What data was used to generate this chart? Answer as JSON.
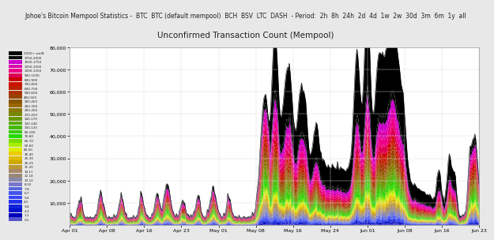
{
  "title": "Unconfirmed Transaction Count (Mempool)",
  "header": "Johoe's Bitcoin Mempool Statistics",
  "background_color": "#e8e8e8",
  "plot_background": "#ffffff",
  "header_background": "#cccccc",
  "ylim": [
    0,
    80000
  ],
  "ylabel_values": [
    10000,
    20000,
    30000,
    40000,
    50000,
    60000,
    70000,
    80000
  ],
  "x_labels": [
    "Apr 01",
    "Apr 08",
    "Apr 16",
    "Apr 23",
    "May 01",
    "May 08",
    "May 16",
    "May 24",
    "Jun 01",
    "Jun 08",
    "Jun 16",
    "Jun 23"
  ],
  "legend_entries": [
    {
      "label": "2000+ sat/B",
      "color": "#000000"
    },
    {
      "label": "1750-2000",
      "color": "#0a0a0a"
    },
    {
      "label": "1500-1750",
      "color": "#cc00cc"
    },
    {
      "label": "1250-1500",
      "color": "#dd00aa"
    },
    {
      "label": "1000-1250",
      "color": "#ee0088"
    },
    {
      "label": "900-1000",
      "color": "#dd0055"
    },
    {
      "label": "800-900",
      "color": "#cc0000"
    },
    {
      "label": "700-800",
      "color": "#cc1100"
    },
    {
      "label": "600-700",
      "color": "#bb2200"
    },
    {
      "label": "500-600",
      "color": "#aa3300"
    },
    {
      "label": "400-500",
      "color": "#994400"
    },
    {
      "label": "300-400",
      "color": "#885500"
    },
    {
      "label": "260-300",
      "color": "#996600"
    },
    {
      "label": "200-260",
      "color": "#887700"
    },
    {
      "label": "170-200",
      "color": "#778800"
    },
    {
      "label": "140-170",
      "color": "#669900"
    },
    {
      "label": "120-140",
      "color": "#55aa00"
    },
    {
      "label": "100-120",
      "color": "#44bb00"
    },
    {
      "label": "80-100",
      "color": "#33cc00"
    },
    {
      "label": "70-80",
      "color": "#22dd00"
    },
    {
      "label": "60-70",
      "color": "#77dd00"
    },
    {
      "label": "50-60",
      "color": "#aaee00"
    },
    {
      "label": "40-50",
      "color": "#ddee00"
    },
    {
      "label": "30-40",
      "color": "#eecc00"
    },
    {
      "label": "25-30",
      "color": "#ddbb00"
    },
    {
      "label": "20-25",
      "color": "#ccaa00"
    },
    {
      "label": "11-20",
      "color": "#bb9933"
    },
    {
      "label": "14-11",
      "color": "#aa8866"
    },
    {
      "label": "12-14",
      "color": "#998877"
    },
    {
      "label": "10-12",
      "color": "#8888aa"
    },
    {
      "label": "8-10",
      "color": "#7777cc"
    },
    {
      "label": "7-8",
      "color": "#5566dd"
    },
    {
      "label": "6-7",
      "color": "#4455ee"
    },
    {
      "label": "5-6",
      "color": "#3344ff"
    },
    {
      "label": "4-5",
      "color": "#2233ee"
    },
    {
      "label": "3-4",
      "color": "#1122dd"
    },
    {
      "label": "2-3",
      "color": "#0011cc"
    },
    {
      "label": "1-2",
      "color": "#0000bb"
    },
    {
      "label": "0-1",
      "color": "#5555cc"
    }
  ],
  "num_points": 400,
  "seed": 42
}
